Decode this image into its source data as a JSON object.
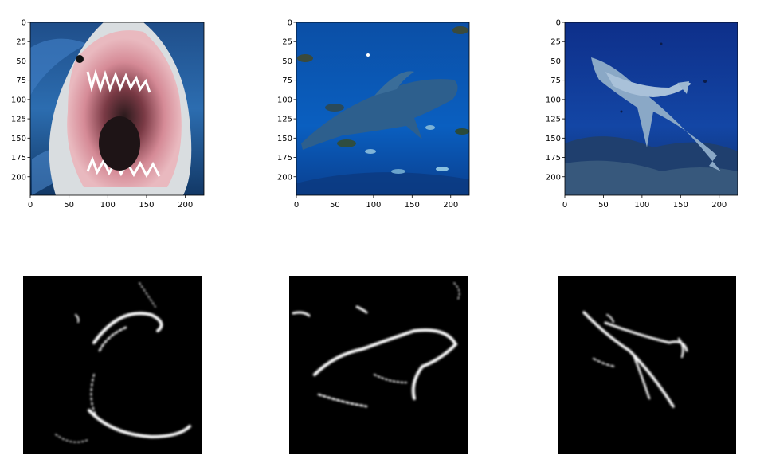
{
  "chart_data": [
    {
      "type": "image",
      "subject": "great white shark, open jaws with teeth, blue water",
      "xlim": [
        0,
        224
      ],
      "ylim": [
        224,
        0
      ],
      "xticks": [
        0,
        50,
        100,
        150,
        200
      ],
      "yticks": [
        0,
        25,
        50,
        75,
        100,
        125,
        150,
        175,
        200
      ],
      "axes_visible": true
    },
    {
      "type": "image",
      "subject": "shark swimming among small fish, deep blue water",
      "xlim": [
        0,
        224
      ],
      "ylim": [
        224,
        0
      ],
      "xticks": [
        0,
        50,
        100,
        150,
        200
      ],
      "yticks": [
        0,
        25,
        50,
        75,
        100,
        125,
        150,
        175,
        200
      ],
      "axes_visible": true
    },
    {
      "type": "image",
      "subject": "grey reef shark over coral reef",
      "xlim": [
        0,
        224
      ],
      "ylim": [
        224,
        0
      ],
      "xticks": [
        0,
        50,
        100,
        150,
        200
      ],
      "yticks": [
        0,
        25,
        50,
        75,
        100,
        125,
        150,
        175,
        200
      ],
      "axes_visible": true
    },
    {
      "type": "heatmap",
      "subject": "saliency map: jaw outline",
      "colormap": "gray",
      "axes_visible": false
    },
    {
      "type": "heatmap",
      "subject": "saliency map: shark body outline",
      "colormap": "gray",
      "axes_visible": false
    },
    {
      "type": "heatmap",
      "subject": "saliency map: reef shark outline",
      "colormap": "gray",
      "axes_visible": false
    }
  ]
}
